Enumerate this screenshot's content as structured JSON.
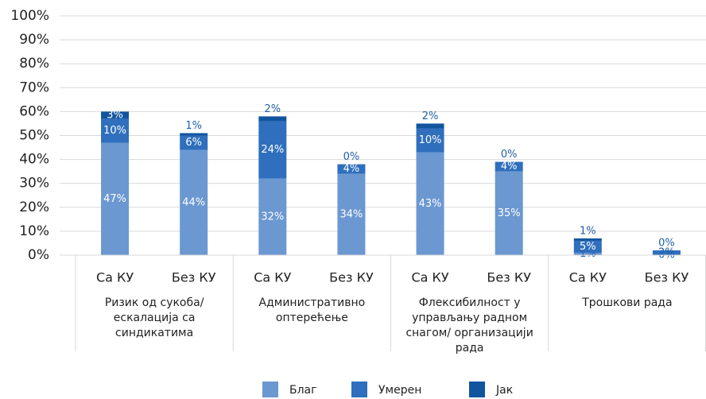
{
  "chart_data": {
    "type": "stacked_bar",
    "categories": [
      "Са КУ",
      "Без КУ",
      "Са КУ",
      "Без КУ",
      "Са КУ",
      "Без КУ",
      "Са КУ",
      "Без КУ"
    ],
    "groups": [
      {
        "lines": [
          "Ризик од сукоба/",
          "ескалација са",
          "синдикатима"
        ]
      },
      {
        "lines": [
          "Административно",
          "оптерећење"
        ]
      },
      {
        "lines": [
          "Флексибилност у",
          "управљању радном",
          "снагом/ организацији",
          "рада"
        ]
      },
      {
        "lines": [
          "Трошкови рада"
        ]
      }
    ],
    "series": [
      {
        "name": "Благ",
        "color": "#6b98d1",
        "values": [
          47,
          44,
          32,
          34,
          43,
          35,
          1,
          0
        ],
        "value_labels": [
          "47%",
          "44%",
          "32%",
          "34%",
          "43%",
          "35%",
          "1%",
          "0%"
        ]
      },
      {
        "name": "Умерен",
        "color": "#2f6fbd",
        "values": [
          10,
          6,
          24,
          4,
          10,
          4,
          5,
          2
        ],
        "value_labels": [
          "10%",
          "6%",
          "24%",
          "4%",
          "10%",
          "4%",
          "5%",
          "2%"
        ]
      },
      {
        "name": "Јак",
        "color": "#11559f",
        "values": [
          3,
          1,
          2,
          0,
          2,
          0,
          1,
          0
        ],
        "value_labels": [
          "3%",
          "1%",
          "2%",
          "0%",
          "2%",
          "0%",
          "1%",
          "0%"
        ]
      }
    ],
    "ylim": [
      0,
      100
    ],
    "yticks": [
      {
        "value": 0,
        "label": "0%"
      },
      {
        "value": 10,
        "label": "10%"
      },
      {
        "value": 20,
        "label": "20%"
      },
      {
        "value": 30,
        "label": "30%"
      },
      {
        "value": 40,
        "label": "40%"
      },
      {
        "value": 50,
        "label": "50%"
      },
      {
        "value": 60,
        "label": "60%"
      },
      {
        "value": 70,
        "label": "70%"
      },
      {
        "value": 80,
        "label": "80%"
      },
      {
        "value": 90,
        "label": "90%"
      },
      {
        "value": 100,
        "label": "100%"
      }
    ],
    "grid": true,
    "legend": "bottom"
  }
}
